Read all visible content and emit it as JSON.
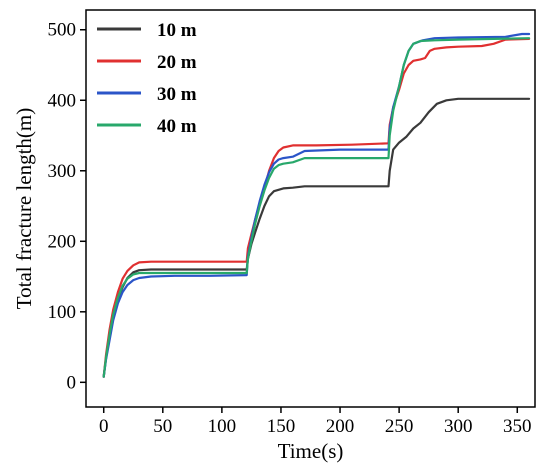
{
  "chart_data": {
    "type": "line",
    "title": "",
    "xlabel": "Time(s)",
    "ylabel": "Total fracture length(m)",
    "xlim": [
      -15,
      365
    ],
    "ylim": [
      -35,
      528
    ],
    "xticks": [
      0,
      50,
      100,
      150,
      200,
      250,
      300,
      350
    ],
    "yticks": [
      0,
      100,
      200,
      300,
      400,
      500
    ],
    "grid": false,
    "legend_position": "top-left",
    "series": [
      {
        "name": "10 m",
        "color": "#3a3a3a",
        "points": [
          [
            0,
            8
          ],
          [
            2,
            35
          ],
          [
            5,
            65
          ],
          [
            8,
            90
          ],
          [
            12,
            118
          ],
          [
            16,
            135
          ],
          [
            20,
            148
          ],
          [
            25,
            156
          ],
          [
            30,
            159
          ],
          [
            40,
            160
          ],
          [
            60,
            160
          ],
          [
            90,
            160
          ],
          [
            121,
            160
          ],
          [
            122,
            175
          ],
          [
            125,
            196
          ],
          [
            128,
            212
          ],
          [
            132,
            232
          ],
          [
            136,
            250
          ],
          [
            140,
            264
          ],
          [
            144,
            271
          ],
          [
            148,
            273
          ],
          [
            152,
            275
          ],
          [
            160,
            276
          ],
          [
            170,
            278
          ],
          [
            200,
            278
          ],
          [
            241,
            278
          ],
          [
            242,
            300
          ],
          [
            245,
            330
          ],
          [
            250,
            340
          ],
          [
            256,
            348
          ],
          [
            262,
            360
          ],
          [
            268,
            368
          ],
          [
            275,
            383
          ],
          [
            282,
            395
          ],
          [
            290,
            400
          ],
          [
            300,
            402
          ],
          [
            330,
            402
          ],
          [
            360,
            402
          ]
        ]
      },
      {
        "name": "20 m",
        "color": "#e03030",
        "points": [
          [
            0,
            8
          ],
          [
            2,
            40
          ],
          [
            5,
            75
          ],
          [
            8,
            103
          ],
          [
            12,
            128
          ],
          [
            16,
            147
          ],
          [
            20,
            158
          ],
          [
            25,
            166
          ],
          [
            30,
            170
          ],
          [
            40,
            171
          ],
          [
            60,
            171
          ],
          [
            90,
            171
          ],
          [
            121,
            171
          ],
          [
            122,
            190
          ],
          [
            125,
            210
          ],
          [
            128,
            230
          ],
          [
            132,
            254
          ],
          [
            136,
            275
          ],
          [
            140,
            300
          ],
          [
            144,
            318
          ],
          [
            148,
            328
          ],
          [
            152,
            333
          ],
          [
            160,
            336
          ],
          [
            180,
            336
          ],
          [
            210,
            337
          ],
          [
            241,
            339
          ],
          [
            242,
            365
          ],
          [
            245,
            390
          ],
          [
            250,
            415
          ],
          [
            254,
            438
          ],
          [
            258,
            450
          ],
          [
            262,
            456
          ],
          [
            268,
            458
          ],
          [
            272,
            460
          ],
          [
            276,
            470
          ],
          [
            280,
            473
          ],
          [
            290,
            475
          ],
          [
            300,
            476
          ],
          [
            320,
            477
          ],
          [
            330,
            480
          ],
          [
            340,
            486
          ],
          [
            360,
            487
          ]
        ]
      },
      {
        "name": "30 m",
        "color": "#2b55c8",
        "points": [
          [
            0,
            8
          ],
          [
            2,
            33
          ],
          [
            5,
            60
          ],
          [
            8,
            88
          ],
          [
            12,
            112
          ],
          [
            16,
            128
          ],
          [
            20,
            138
          ],
          [
            25,
            145
          ],
          [
            30,
            148
          ],
          [
            40,
            150
          ],
          [
            60,
            151
          ],
          [
            90,
            151
          ],
          [
            121,
            152
          ],
          [
            122,
            178
          ],
          [
            125,
            205
          ],
          [
            128,
            230
          ],
          [
            132,
            257
          ],
          [
            136,
            280
          ],
          [
            140,
            298
          ],
          [
            144,
            310
          ],
          [
            148,
            316
          ],
          [
            152,
            318
          ],
          [
            160,
            320
          ],
          [
            170,
            328
          ],
          [
            200,
            330
          ],
          [
            241,
            330
          ],
          [
            242,
            360
          ],
          [
            245,
            390
          ],
          [
            250,
            420
          ],
          [
            254,
            450
          ],
          [
            258,
            470
          ],
          [
            262,
            480
          ],
          [
            270,
            485
          ],
          [
            280,
            488
          ],
          [
            300,
            489
          ],
          [
            340,
            490
          ],
          [
            354,
            494
          ],
          [
            360,
            494
          ]
        ]
      },
      {
        "name": "40 m",
        "color": "#28a86b",
        "points": [
          [
            0,
            8
          ],
          [
            2,
            36
          ],
          [
            5,
            68
          ],
          [
            8,
            96
          ],
          [
            12,
            120
          ],
          [
            16,
            137
          ],
          [
            20,
            147
          ],
          [
            25,
            153
          ],
          [
            30,
            155
          ],
          [
            40,
            155
          ],
          [
            60,
            155
          ],
          [
            90,
            155
          ],
          [
            121,
            155
          ],
          [
            122,
            175
          ],
          [
            125,
            200
          ],
          [
            128,
            224
          ],
          [
            132,
            250
          ],
          [
            136,
            272
          ],
          [
            140,
            290
          ],
          [
            144,
            303
          ],
          [
            148,
            308
          ],
          [
            152,
            310
          ],
          [
            160,
            312
          ],
          [
            170,
            318
          ],
          [
            200,
            318
          ],
          [
            241,
            318
          ],
          [
            242,
            350
          ],
          [
            245,
            385
          ],
          [
            250,
            420
          ],
          [
            254,
            450
          ],
          [
            258,
            470
          ],
          [
            262,
            480
          ],
          [
            268,
            484
          ],
          [
            280,
            485
          ],
          [
            300,
            486
          ],
          [
            330,
            487
          ],
          [
            360,
            488
          ]
        ]
      }
    ]
  }
}
